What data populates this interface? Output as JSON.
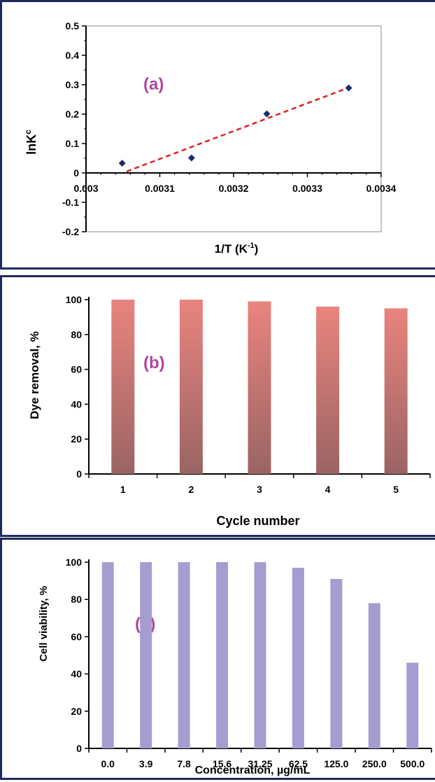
{
  "chart_data": [
    {
      "type": "scatter",
      "label": "(a)",
      "xlabel_main": "1/T (K",
      "xlabel_sup": "-1",
      "xlabel_end": ")",
      "ylabel_main": "lnK",
      "ylabel_sup": "c",
      "xlim": [
        0.003,
        0.0034
      ],
      "ylim": [
        -0.2,
        0.5
      ],
      "xticks": [
        "0.003",
        "0.0031",
        "0.0032",
        "0.0033",
        "0.0034"
      ],
      "yticks": [
        "-0.2",
        "-0.1",
        "0",
        "0.1",
        "0.2",
        "0.3",
        "0.4",
        "0.5"
      ],
      "points": [
        {
          "x": 0.003049,
          "y": 0.033
        },
        {
          "x": 0.003143,
          "y": 0.051
        },
        {
          "x": 0.003245,
          "y": 0.201
        },
        {
          "x": 0.003356,
          "y": 0.289
        }
      ],
      "trendline": [
        {
          "x": 0.003055,
          "y": 0.005
        },
        {
          "x": 0.003356,
          "y": 0.29
        }
      ],
      "colors": {
        "points": "#1f2a6e",
        "trendline": "#e02020"
      }
    },
    {
      "type": "bar",
      "label": "(b)",
      "xlabel": "Cycle number",
      "ylabel": "Dye removal, %",
      "categories": [
        "1",
        "2",
        "3",
        "4",
        "5"
      ],
      "values": [
        100,
        100,
        99,
        96,
        95
      ],
      "ylim": [
        0,
        100
      ],
      "yticks": [
        "0",
        "20",
        "40",
        "60",
        "80",
        "100"
      ],
      "colors": {
        "bar_top": "#e9847e",
        "bar_bottom": "#9a6464"
      }
    },
    {
      "type": "bar",
      "label": "(c)",
      "xlabel": "Concentration, µg/mL",
      "ylabel": "Cell viability, %",
      "categories": [
        "0.0",
        "3.9",
        "7.8",
        "15.6",
        "31.25",
        "62.5",
        "125.0",
        "250.0",
        "500.0"
      ],
      "values": [
        100,
        100,
        100,
        100,
        100,
        97,
        91,
        78,
        46
      ],
      "ylim": [
        0,
        100
      ],
      "yticks": [
        "0",
        "20",
        "40",
        "60",
        "80",
        "100"
      ],
      "colors": {
        "bar": "#a79cd0"
      }
    }
  ]
}
